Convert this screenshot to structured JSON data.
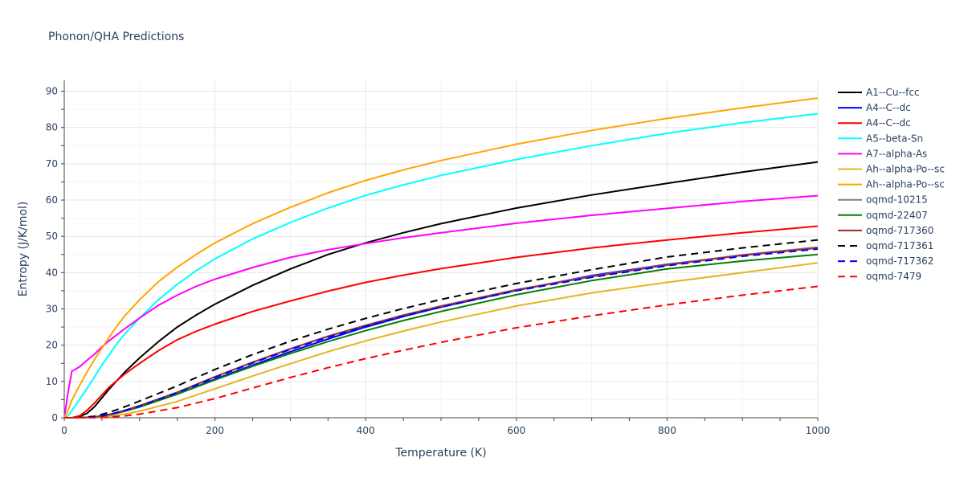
{
  "chart_data": {
    "type": "line",
    "title": "Phonon/QHA Predictions",
    "xlabel": "Temperature (K)",
    "ylabel": "Entropy (J/K/mol)",
    "xlim": [
      0,
      1000
    ],
    "ylim": [
      0,
      93
    ],
    "xticks": [
      0,
      200,
      400,
      600,
      800,
      1000
    ],
    "yticks": [
      0,
      10,
      20,
      30,
      40,
      50,
      60,
      70,
      80,
      90
    ],
    "grid": true,
    "legend_position": "right",
    "series": [
      {
        "name": "A1--Cu--fcc",
        "color": "#000000",
        "dash": "solid",
        "x": [
          0,
          10,
          20,
          30,
          40,
          50,
          60,
          80,
          100,
          125,
          150,
          175,
          200,
          250,
          300,
          350,
          400,
          450,
          500,
          600,
          700,
          800,
          900,
          1000
        ],
        "y": [
          0,
          0,
          0.3,
          1.2,
          3,
          5.5,
          8,
          12.5,
          16.5,
          21,
          25,
          28.3,
          31.3,
          36.5,
          41,
          45,
          48.2,
          51,
          53.5,
          57.8,
          61.4,
          64.6,
          67.7,
          70.5
        ]
      },
      {
        "name": "A4--C--dc",
        "color": "#0000ff",
        "dash": "solid",
        "x": [
          0,
          20,
          40,
          60,
          80,
          100,
          150,
          200,
          250,
          300,
          350,
          400,
          450,
          500,
          600,
          700,
          800,
          900,
          1000
        ],
        "y": [
          0,
          0,
          0.2,
          0.8,
          1.8,
          3,
          6.5,
          10.6,
          14.5,
          18.2,
          21.7,
          25,
          27.9,
          30.5,
          35.1,
          39.2,
          42.3,
          44.8,
          46.8
        ]
      },
      {
        "name": "A4--C--dc",
        "color": "#ff0000",
        "dash": "solid",
        "x": [
          0,
          10,
          20,
          30,
          40,
          50,
          60,
          80,
          100,
          125,
          150,
          175,
          200,
          250,
          300,
          350,
          400,
          450,
          500,
          600,
          700,
          800,
          900,
          1000
        ],
        "y": [
          0,
          0,
          0.5,
          2,
          4,
          6.3,
          8.5,
          12,
          15,
          18.5,
          21.5,
          23.8,
          25.8,
          29.3,
          32.2,
          34.9,
          37.3,
          39.3,
          41.1,
          44.2,
          46.8,
          49,
          51,
          52.8
        ]
      },
      {
        "name": "A5--beta-Sn",
        "color": "#00ffff",
        "dash": "solid",
        "x": [
          0,
          5,
          10,
          20,
          30,
          40,
          50,
          60,
          70,
          80,
          100,
          125,
          150,
          175,
          200,
          250,
          300,
          350,
          400,
          450,
          500,
          600,
          700,
          800,
          900,
          1000
        ],
        "y": [
          0,
          0.5,
          2,
          5,
          8,
          11.2,
          14.5,
          17.5,
          20.5,
          23,
          27.5,
          32.5,
          36.8,
          40.5,
          43.8,
          49.3,
          53.8,
          57.8,
          61.3,
          64.2,
          66.8,
          71.2,
          75,
          78.4,
          81.3,
          83.8
        ]
      },
      {
        "name": "A7--alpha-As",
        "color": "#ff00ff",
        "dash": "solid",
        "x": [
          0,
          5,
          10,
          20,
          30,
          40,
          50,
          60,
          80,
          100,
          125,
          150,
          175,
          200,
          250,
          300,
          350,
          400,
          450,
          500,
          600,
          700,
          800,
          900,
          1000
        ],
        "y": [
          0,
          7,
          12.8,
          14,
          15.8,
          17.5,
          19.5,
          21.3,
          24.5,
          27.5,
          31,
          33.8,
          36.2,
          38.2,
          41.4,
          44.2,
          46.3,
          48,
          49.6,
          51,
          53.6,
          55.8,
          57.7,
          59.6,
          61.2
        ]
      },
      {
        "name": "Ah--alpha-Po--sc",
        "color": "#e6b422",
        "dash": "solid",
        "x": [
          0,
          20,
          40,
          60,
          80,
          100,
          150,
          200,
          250,
          300,
          350,
          400,
          450,
          500,
          600,
          700,
          800,
          900,
          1000
        ],
        "y": [
          0,
          0,
          0.1,
          0.4,
          1,
          1.8,
          4.5,
          8,
          11.5,
          14.9,
          18.2,
          21.2,
          23.9,
          26.4,
          30.8,
          34.4,
          37.3,
          40,
          42.7
        ]
      },
      {
        "name": "Ah--alpha-Po--sc",
        "color": "#ffa500",
        "dash": "solid",
        "x": [
          0,
          5,
          10,
          20,
          30,
          40,
          50,
          60,
          70,
          80,
          100,
          125,
          150,
          175,
          200,
          250,
          300,
          350,
          400,
          450,
          500,
          600,
          700,
          800,
          900,
          1000
        ],
        "y": [
          0,
          2,
          4.8,
          8.8,
          12.5,
          16,
          19.2,
          22.3,
          25.3,
          28,
          32.5,
          37.5,
          41.5,
          45,
          48.2,
          53.5,
          58,
          62,
          65.4,
          68.3,
          70.9,
          75.4,
          79.2,
          82.5,
          85.4,
          88.1
        ]
      },
      {
        "name": "oqmd-10215",
        "color": "#808080",
        "dash": "solid",
        "x": [
          0,
          20,
          40,
          60,
          80,
          100,
          150,
          200,
          250,
          300,
          350,
          400,
          450,
          500,
          600,
          700,
          800,
          900,
          1000
        ],
        "y": [
          0,
          0,
          0.2,
          0.9,
          2,
          3.3,
          7,
          11.3,
          15.3,
          19,
          22.5,
          25.5,
          28.3,
          30.8,
          35.3,
          39,
          42.2,
          44.9,
          47
        ]
      },
      {
        "name": "oqmd-22407",
        "color": "#008000",
        "dash": "solid",
        "x": [
          0,
          20,
          40,
          60,
          80,
          100,
          150,
          200,
          250,
          300,
          350,
          400,
          450,
          500,
          600,
          700,
          800,
          900,
          1000
        ],
        "y": [
          0,
          0,
          0.2,
          0.8,
          1.8,
          3,
          6.5,
          10.4,
          14.2,
          17.7,
          21,
          24,
          26.8,
          29.3,
          33.9,
          37.8,
          41,
          43.2,
          45
        ]
      },
      {
        "name": "oqmd-717360",
        "color": "#a52a2a",
        "dash": "solid",
        "x": [
          0,
          20,
          40,
          60,
          80,
          100,
          150,
          200,
          250,
          300,
          350,
          400,
          450,
          500,
          600,
          700,
          800,
          900,
          1000
        ],
        "y": [
          0,
          0,
          0.2,
          0.9,
          2,
          3.3,
          7,
          11.3,
          15.3,
          19,
          22.4,
          25.4,
          28.2,
          30.7,
          35.2,
          38.9,
          42.1,
          44.8,
          46.8
        ]
      },
      {
        "name": "oqmd-717361",
        "color": "#000000",
        "dash": "dash",
        "x": [
          0,
          20,
          40,
          60,
          80,
          100,
          150,
          200,
          250,
          300,
          350,
          400,
          450,
          500,
          600,
          700,
          800,
          900,
          1000
        ],
        "y": [
          0,
          0,
          0.4,
          1.5,
          3,
          4.6,
          8.8,
          13.3,
          17.4,
          21.1,
          24.4,
          27.4,
          30.1,
          32.6,
          37,
          40.8,
          44.3,
          46.8,
          49
        ]
      },
      {
        "name": "oqmd-717362",
        "color": "#0000ff",
        "dash": "dash",
        "x": [
          0,
          20,
          40,
          60,
          80,
          100,
          150,
          200,
          250,
          300,
          350,
          400,
          450,
          500,
          600,
          700,
          800,
          900,
          1000
        ],
        "y": [
          0,
          0,
          0.2,
          0.9,
          2,
          3.2,
          6.9,
          11.1,
          15.1,
          18.8,
          22.2,
          25.2,
          28,
          30.5,
          35,
          38.7,
          41.9,
          44.5,
          46.5
        ]
      },
      {
        "name": "oqmd-7479",
        "color": "#ff0000",
        "dash": "dash",
        "x": [
          0,
          20,
          40,
          60,
          80,
          100,
          150,
          200,
          250,
          300,
          350,
          400,
          450,
          500,
          600,
          700,
          800,
          900,
          1000
        ],
        "y": [
          0,
          0,
          0,
          0.2,
          0.5,
          1,
          2.8,
          5.3,
          8.2,
          11.1,
          13.8,
          16.3,
          18.6,
          20.8,
          24.8,
          28.1,
          31.1,
          33.8,
          36.2
        ]
      }
    ]
  }
}
